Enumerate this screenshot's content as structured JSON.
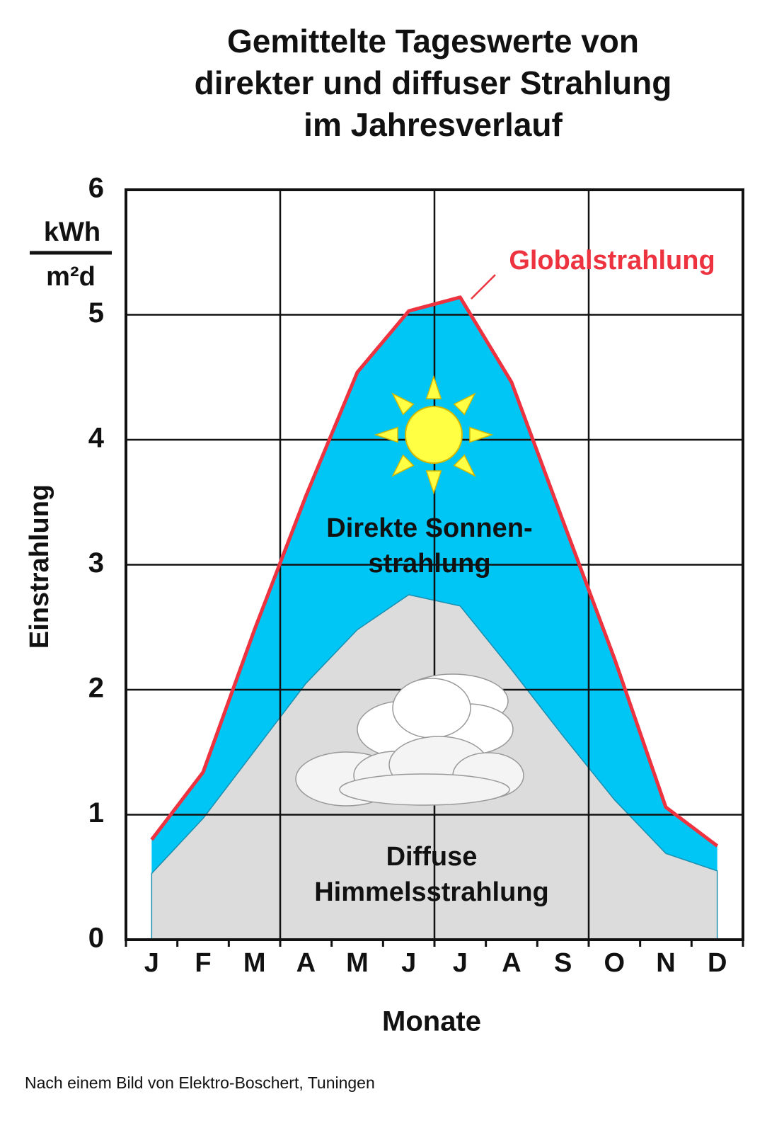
{
  "chart_data": {
    "type": "area",
    "title": [
      "Gemittelte Tageswerte von",
      "direkter und diffuser Strahlung",
      "im Jahresverlauf"
    ],
    "y_label": "Einstrahlung",
    "y_unit": [
      "kWh",
      "m²d"
    ],
    "x_label": "Monate",
    "categories": [
      "J",
      "F",
      "M",
      "A",
      "M",
      "J",
      "J",
      "A",
      "S",
      "O",
      "N",
      "D"
    ],
    "series": [
      {
        "name": "Globalstrahlung",
        "color": "#ee3340",
        "fill": "#00c6f6",
        "area_label": [
          "Direkte Sonnen-",
          "strahlung"
        ],
        "values": [
          0.8,
          1.34,
          2.48,
          3.55,
          4.54,
          5.03,
          5.14,
          4.46,
          3.35,
          2.25,
          1.06,
          0.75
        ]
      },
      {
        "area_label": [
          "Diffuse",
          "Himmelsstrahlung"
        ],
        "color": "#dcdcdc",
        "values": [
          0.53,
          0.97,
          1.51,
          2.05,
          2.48,
          2.76,
          2.67,
          2.16,
          1.63,
          1.12,
          0.69,
          0.55
        ]
      }
    ],
    "ylim": [
      0,
      6
    ],
    "yticks": [
      0,
      1,
      2,
      3,
      4,
      5,
      6
    ],
    "grid": true,
    "source": "Nach einem Bild von Elektro-Boschert, Tuningen"
  }
}
